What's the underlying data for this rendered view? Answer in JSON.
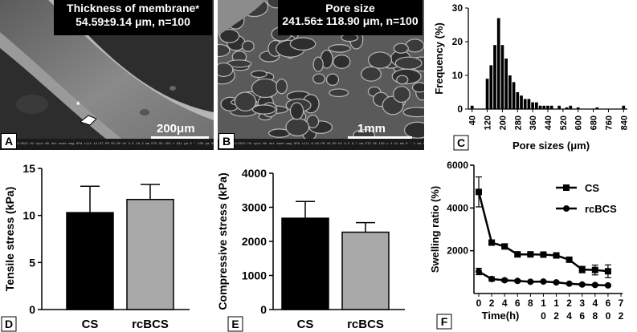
{
  "panels": {
    "a": {
      "letter": "A",
      "overlay_line1": "Thickness of membrane",
      "overlay_marker": "*",
      "overlay_line2": "54.59±9.14 μm, n=100",
      "marker": "*",
      "scale_label": "200μm",
      "info_text": "16/2022  HV  spot  WD  det  mode  mag  HFW  tilt   12:37 PM  20.00 kV  3.5  19.2 mm  ETD  SE  450 x  921 μm  0 °      200 μm      XMU"
    },
    "b": {
      "letter": "B",
      "overlay_line1": "Pore size",
      "overlay_line2": "241.56± 118.90 μm, n=100",
      "scale_label": "1mm",
      "info_text": "30/2022  HV  spot  WD  det  mode  mag  HFW  tilt   6:40 PM  20.00 kV  3.5  9.7 mm  ETD  SE  100 x  4.14 mm  0 °      1 mm      XMU"
    },
    "c": {
      "letter": "C"
    },
    "d": {
      "letter": "D"
    },
    "e": {
      "letter": "E"
    },
    "f": {
      "letter": "F"
    }
  },
  "chart_data": [
    {
      "id": "C",
      "type": "bar",
      "xlabel": "Pore sizes (μm)",
      "ylabel": "Frequency (%)",
      "ylim": [
        0,
        30
      ],
      "yticks": [
        0,
        10,
        20,
        30
      ],
      "xticks": [
        40,
        120,
        200,
        280,
        360,
        440,
        520,
        600,
        680,
        760,
        840
      ],
      "bin_width": 20,
      "x": [
        40,
        120,
        140,
        160,
        180,
        200,
        220,
        240,
        260,
        280,
        300,
        320,
        340,
        360,
        380,
        400,
        420,
        440,
        460,
        500,
        540,
        560,
        600,
        700,
        840
      ],
      "values": [
        1,
        9,
        13,
        19,
        27,
        19,
        15,
        10,
        8,
        5,
        4,
        3,
        3,
        2,
        2,
        1,
        1,
        1,
        1,
        1,
        0.5,
        1,
        0.5,
        0.5,
        1
      ],
      "color": "#000000"
    },
    {
      "id": "D",
      "type": "bar",
      "ylabel": "Tensile stress (kPa)",
      "categories": [
        "CS",
        "rcBCS"
      ],
      "values": [
        10.3,
        11.7
      ],
      "errors": [
        2.8,
        1.6
      ],
      "colors": [
        "#000000",
        "#a9a9a9"
      ],
      "ylim": [
        0,
        15
      ],
      "yticks": [
        0,
        5,
        10,
        15
      ]
    },
    {
      "id": "E",
      "type": "bar",
      "ylabel": "Compressive stress (kPa)",
      "categories": [
        "CS",
        "rcBCS"
      ],
      "values": [
        2680,
        2270
      ],
      "errors": [
        490,
        280
      ],
      "colors": [
        "#000000",
        "#a9a9a9"
      ],
      "ylim": [
        0,
        4000
      ],
      "yticks": [
        0,
        1000,
        2000,
        3000,
        4000
      ]
    },
    {
      "id": "F",
      "type": "line",
      "xlabel": "Time(h)",
      "ylabel": "Swelling  ratio (%)",
      "x": [
        0,
        2,
        4,
        6,
        8,
        10,
        12,
        24,
        36,
        48,
        60
      ],
      "x_tick_labels": [
        [
          "0",
          ""
        ],
        [
          "2",
          ""
        ],
        [
          "4",
          ""
        ],
        [
          "6",
          ""
        ],
        [
          "8",
          ""
        ],
        [
          "1",
          "0"
        ],
        [
          "1",
          "2"
        ],
        [
          "2",
          "4"
        ],
        [
          "3",
          "6"
        ],
        [
          "4",
          "8"
        ],
        [
          "6",
          "0"
        ],
        [
          "7",
          "2"
        ]
      ],
      "ylim": [
        0,
        6000
      ],
      "yticks": [
        2000,
        4000,
        6000
      ],
      "series": [
        {
          "name": "CS",
          "marker": "square",
          "values": [
            4750,
            2380,
            2200,
            1830,
            1830,
            1820,
            1780,
            1580,
            1120,
            1100,
            1040
          ],
          "errors": [
            700,
            80,
            80,
            120,
            80,
            80,
            80,
            80,
            150,
            230,
            300
          ]
        },
        {
          "name": "rcBCS",
          "marker": "circle",
          "values": [
            1030,
            680,
            620,
            590,
            550,
            560,
            520,
            460,
            420,
            400,
            380
          ],
          "errors": [
            150,
            100,
            60,
            50,
            40,
            40,
            40,
            40,
            40,
            40,
            40
          ]
        }
      ]
    }
  ]
}
